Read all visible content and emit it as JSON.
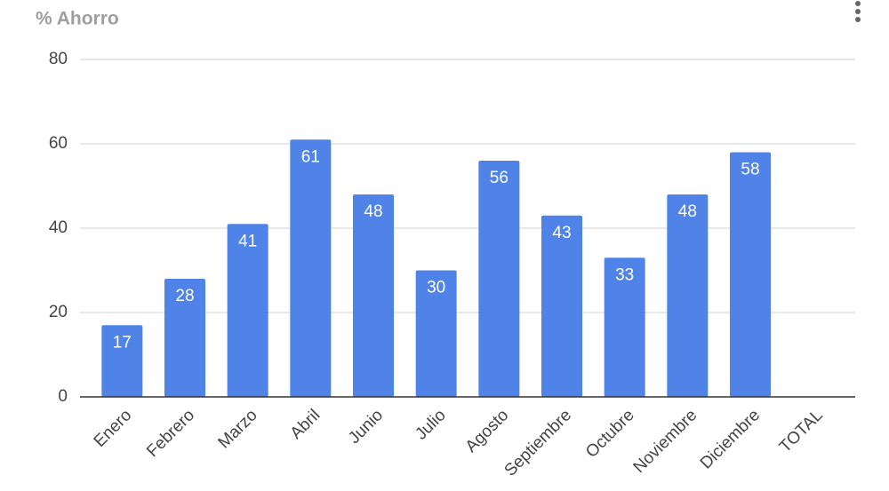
{
  "chart_data": {
    "type": "bar",
    "title": "% Ahorro",
    "categories": [
      "Enero",
      "Febrero",
      "Marzo",
      "Abril",
      "Junio",
      "Julio",
      "Agosto",
      "Septiembre",
      "Octubre",
      "Noviembre",
      "Diciembre",
      "TOTAL"
    ],
    "values": [
      17,
      28,
      41,
      61,
      48,
      30,
      56,
      43,
      33,
      48,
      58,
      null
    ],
    "color": "#4f83e8",
    "ylim": [
      0,
      80
    ],
    "yticks": [
      0,
      20,
      40,
      60,
      80
    ],
    "grid": true
  }
}
